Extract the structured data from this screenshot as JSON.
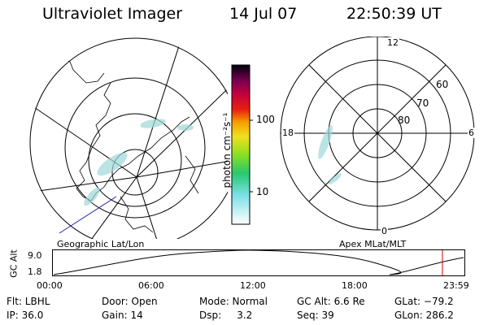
{
  "header": {
    "instrument": "Ultraviolet Imager",
    "date": "14 Jul 07",
    "time": "22:50:39 UT"
  },
  "colorbar": {
    "unit_label": "photon cm⁻²s⁻¹",
    "ticks": [
      "100",
      "10"
    ]
  },
  "polar_plot": {
    "mlt_labels": [
      "12",
      "18",
      "6",
      "0"
    ],
    "mlat_labels": [
      "60",
      "70",
      "80"
    ]
  },
  "captions": {
    "left": "Geographic Lat/Lon",
    "right": "Apex MLat/MLT"
  },
  "altitude_plot": {
    "ylabel": "GC Alt",
    "yticks": [
      "9.0",
      "1.8"
    ],
    "xticks": [
      "00:00",
      "06:00",
      "12:00",
      "18:00",
      "23:59"
    ]
  },
  "info": {
    "flt": "Flt: LBHL",
    "ip": "IP: 36.0",
    "door": "Door: Open",
    "gain": "Gain: 14",
    "mode": "Mode: Normal",
    "dsp": "Dsp:     3.2",
    "gcalt": "GC Alt: 6.6 Re",
    "seq": "Seq: 39",
    "glat": "GLat: −79.2",
    "glon": "GLon: 286.2"
  },
  "colors": {
    "background": "#ffffff",
    "marker": "#cc0000",
    "track": "#2222aa"
  }
}
